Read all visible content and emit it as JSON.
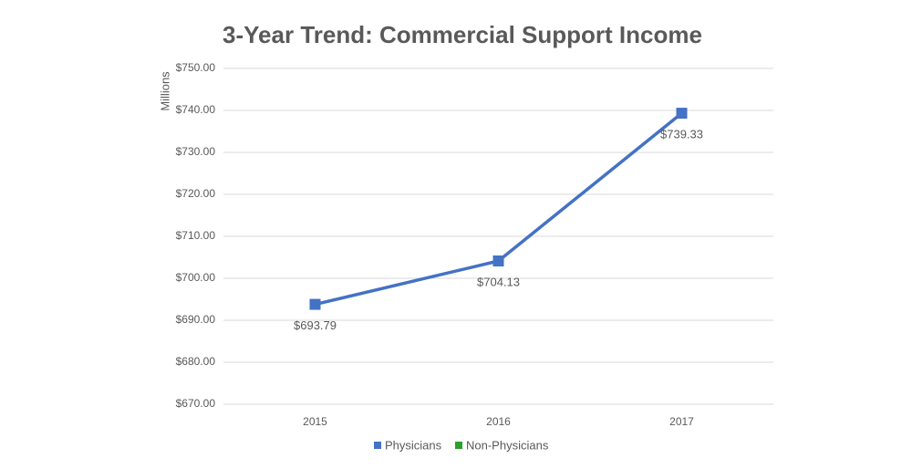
{
  "chart_data": {
    "type": "line",
    "title": "3-Year Trend: Commercial Support Income",
    "y_label": "Millions",
    "categories": [
      "2015",
      "2016",
      "2017"
    ],
    "series": [
      {
        "name": "Physicians",
        "color": "#4472c4",
        "values": [
          693.79,
          704.13,
          739.33
        ],
        "value_labels": [
          "$693.79",
          "$704.13",
          "$739.33"
        ]
      },
      {
        "name": "Non-Physicians",
        "color": "#2ca02c",
        "values": [
          null,
          null,
          null
        ]
      }
    ],
    "ylim": [
      670,
      750
    ],
    "yticks": [
      {
        "value": 670,
        "label": "$670.00"
      },
      {
        "value": 680,
        "label": "$680.00"
      },
      {
        "value": 690,
        "label": "$690.00"
      },
      {
        "value": 700,
        "label": "$700.00"
      },
      {
        "value": 710,
        "label": "$710.00"
      },
      {
        "value": 720,
        "label": "$720.00"
      },
      {
        "value": 730,
        "label": "$730.00"
      },
      {
        "value": 740,
        "label": "$740.00"
      },
      {
        "value": 750,
        "label": "$750.00"
      }
    ],
    "grid": true,
    "legend": "bottom"
  }
}
